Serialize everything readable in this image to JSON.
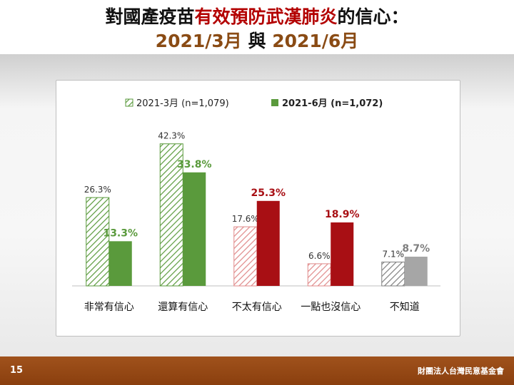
{
  "slide": {
    "title_line1_pre": "對國產疫苗",
    "title_line1_hl": "有效預防武漢肺炎",
    "title_line1_post": "的信心：",
    "title_line2_a": "2021/3月",
    "title_line2_mid": " 與 ",
    "title_line2_b": "2021/6月",
    "page_number": "15",
    "organization": "財團法人台灣民意基金會"
  },
  "colors": {
    "title_highlight": "#b30000",
    "subtitle": "#8a4b14",
    "footer": "#8f430f",
    "green": "#5a9a3c",
    "red": "#a80f14",
    "gray": "#a6a6a6"
  },
  "chart_data": {
    "type": "bar",
    "categories": [
      "非常有信心",
      "還算有信心",
      "不太有信心",
      "一點也沒信心",
      "不知道"
    ],
    "series": [
      {
        "name": "2021-3月 (n=1,079)",
        "values": [
          26.3,
          42.3,
          17.6,
          6.6,
          7.1
        ],
        "style": "hatched"
      },
      {
        "name": "2021-6月 (n=1,072)",
        "values": [
          13.3,
          33.8,
          25.3,
          18.9,
          8.7
        ],
        "style": "solid"
      }
    ],
    "value_labels": [
      [
        "26.3%",
        "42.3%",
        "17.6%",
        "6.6%",
        "7.1%"
      ],
      [
        "13.3%",
        "33.8%",
        "25.3%",
        "18.9%",
        "8.7%"
      ]
    ],
    "category_colors": [
      "#5a9a3c",
      "#5a9a3c",
      "#a80f14",
      "#a80f14",
      "#a6a6a6"
    ],
    "ylim": [
      0,
      45
    ],
    "grid": false,
    "legend_position": "top"
  }
}
